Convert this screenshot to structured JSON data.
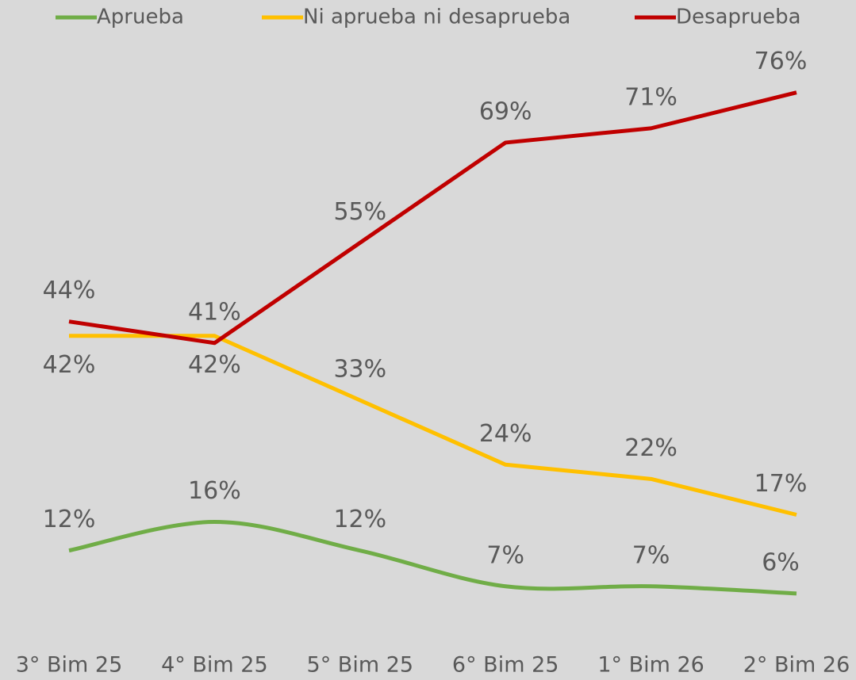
{
  "chart_data": {
    "type": "line",
    "categories": [
      "3° Bim 25",
      "4° Bim 25",
      "5° Bim 25",
      "6° Bim 25",
      "1° Bim 26",
      "2° Bim 26"
    ],
    "series": [
      {
        "name": "Aprueba",
        "color": "#70ad47",
        "smooth": true,
        "values": [
          12,
          16,
          12,
          7,
          7,
          6
        ],
        "value_labels": [
          "12%",
          "16%",
          "12%",
          "7%",
          "7%",
          "6%"
        ]
      },
      {
        "name": "Ni aprueba ni desaprueba",
        "color": "#ffc000",
        "values": [
          42,
          42,
          33,
          24,
          22,
          17
        ],
        "value_labels": [
          "42%",
          "42%",
          "33%",
          "24%",
          "22%",
          "17%"
        ]
      },
      {
        "name": "Desaprueba",
        "color": "#c00000",
        "values": [
          44,
          41,
          55,
          69,
          71,
          76
        ],
        "value_labels": [
          "44%",
          "41%",
          "55%",
          "69%",
          "71%",
          "76%"
        ]
      }
    ],
    "legend": "top"
  }
}
